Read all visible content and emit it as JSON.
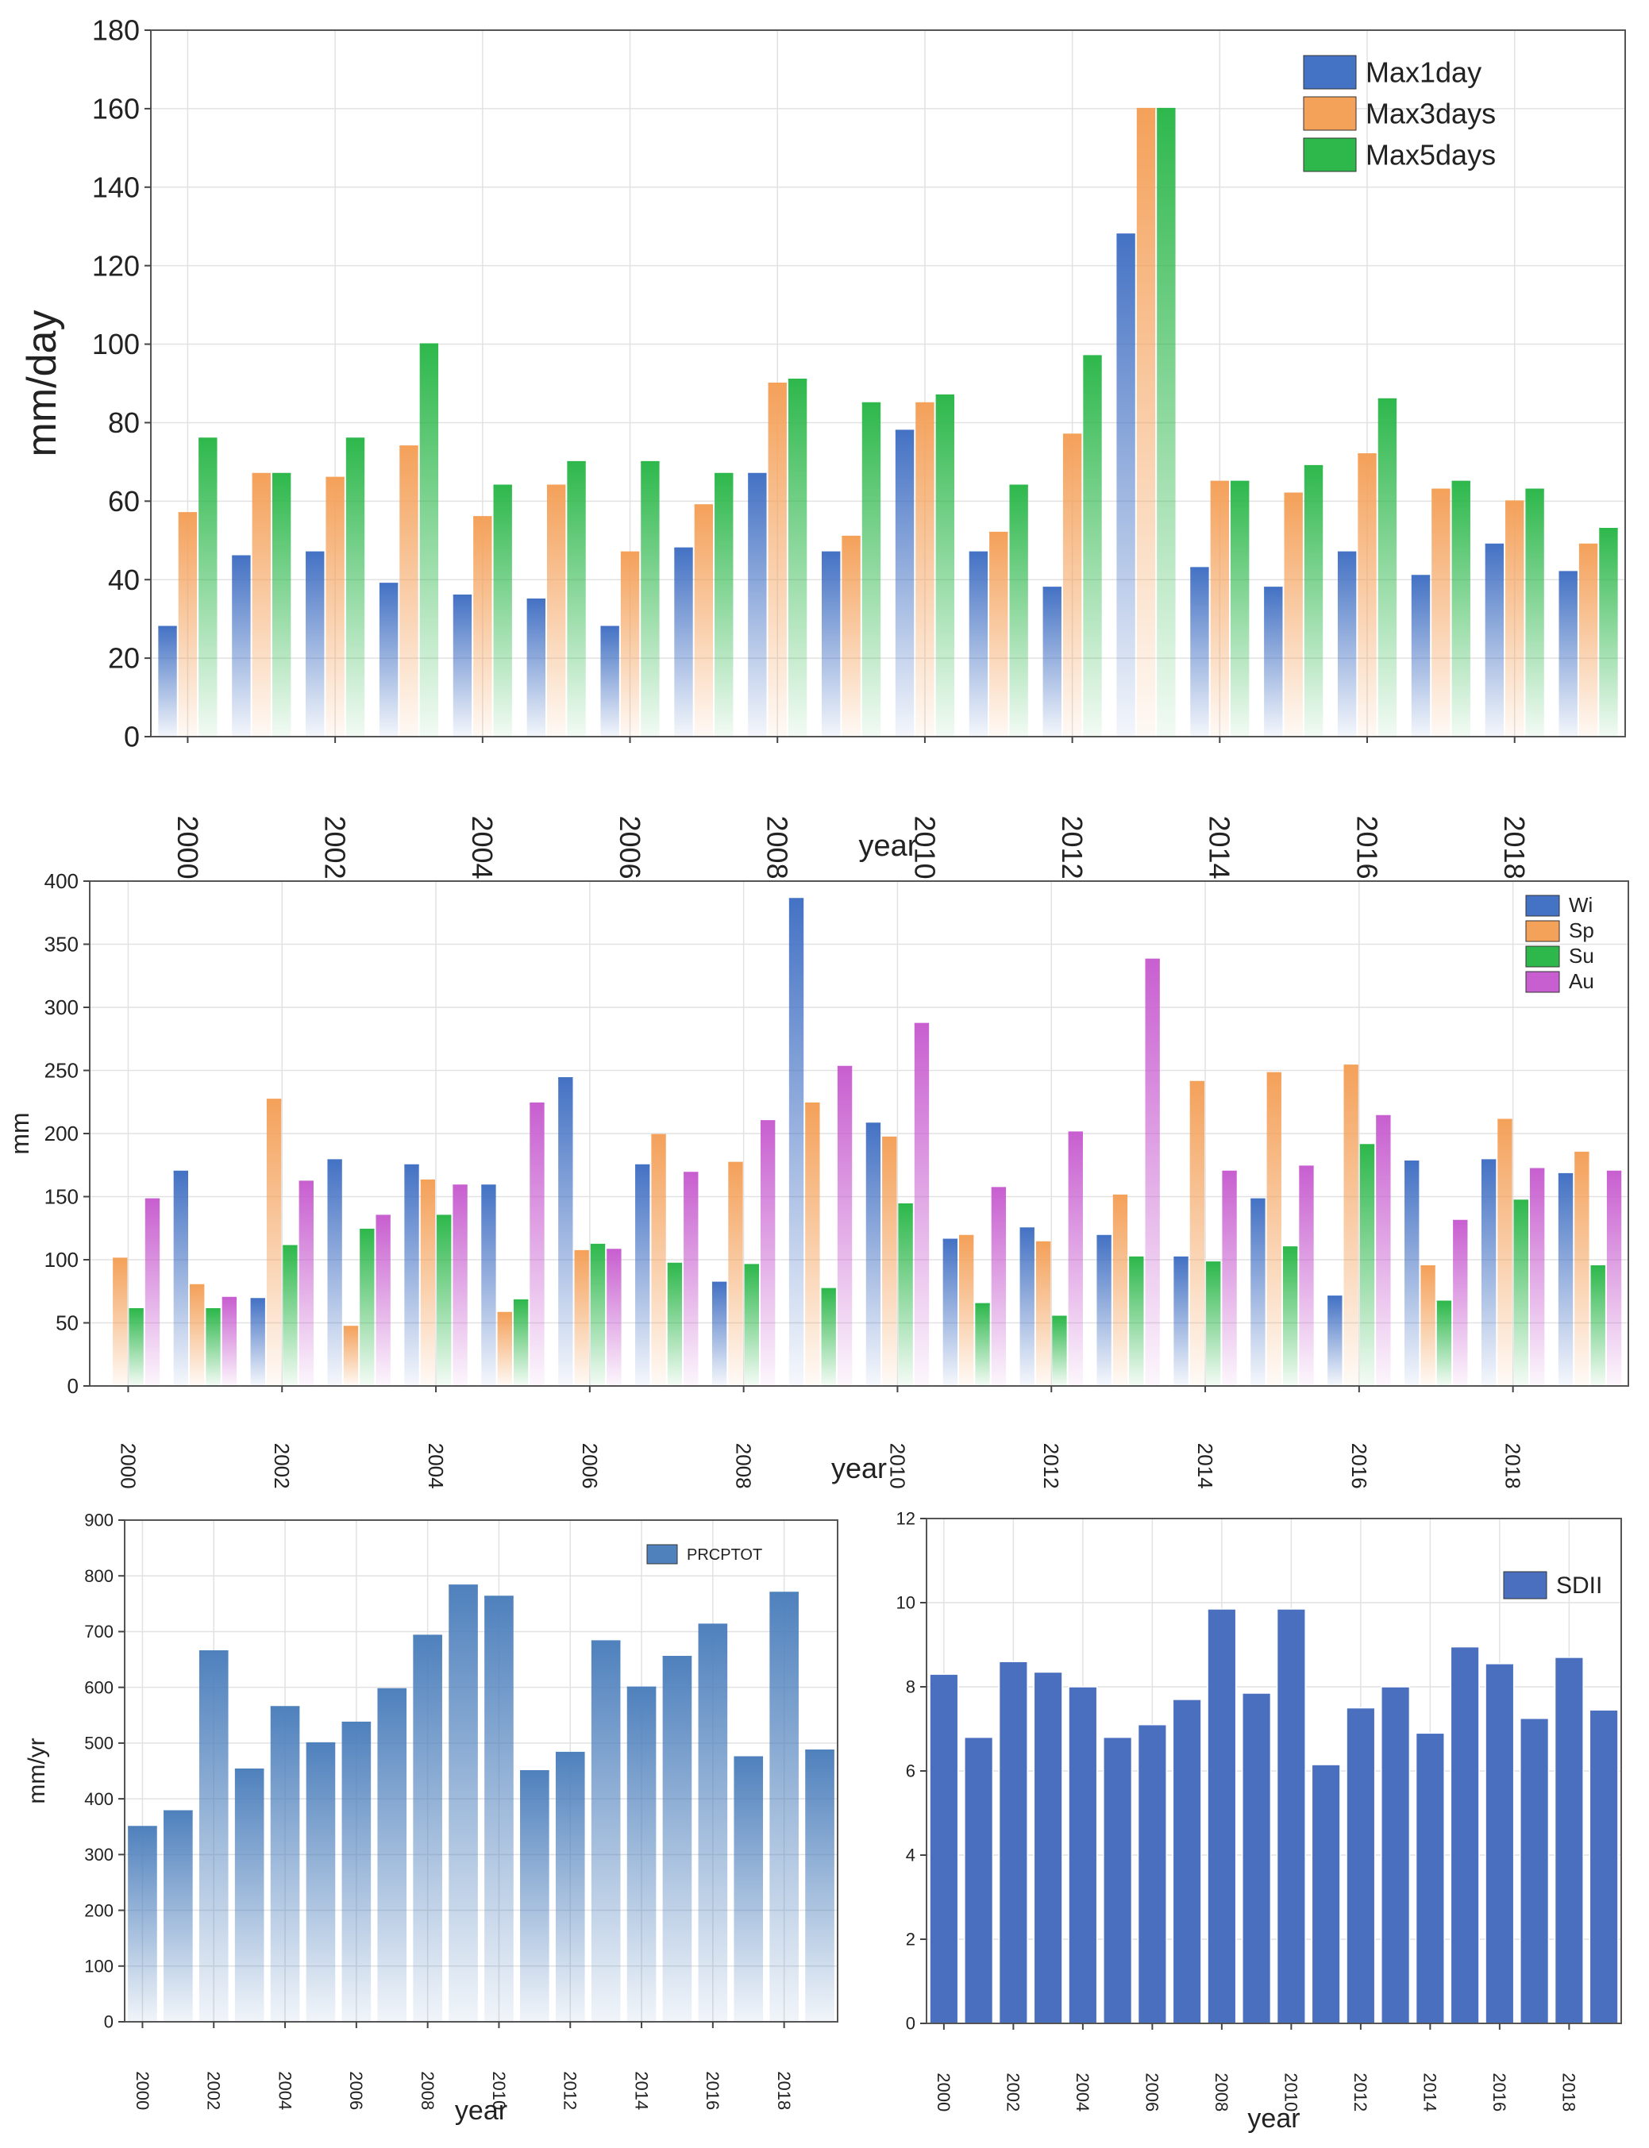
{
  "colors": {
    "Max1day": "#4472c4",
    "Max3days": "#f4a15a",
    "Max5days": "#2eb84c",
    "Wi": "#4472c4",
    "Sp": "#f4a15a",
    "Su": "#2eb84c",
    "Au": "#c85fd0",
    "PRCPTOT": "#4f81bd",
    "SDII": "#4a6fbe"
  },
  "chart_data": [
    {
      "id": "extremes",
      "type": "bar",
      "title": "",
      "xlabel": "year",
      "ylabel": "mm/day",
      "ylim": [
        0,
        180
      ],
      "yticks": [
        0,
        20,
        40,
        60,
        80,
        100,
        120,
        140,
        160,
        180
      ],
      "xtick_labels": [
        "2000",
        "2002",
        "2004",
        "2006",
        "2008",
        "2010",
        "2012",
        "2014",
        "2016",
        "2018"
      ],
      "legend_position": "top-right",
      "grid": true,
      "categories": [
        2000,
        2001,
        2002,
        2003,
        2004,
        2005,
        2006,
        2007,
        2008,
        2009,
        2010,
        2011,
        2012,
        2013,
        2014,
        2015,
        2016,
        2017,
        2018,
        2019
      ],
      "series": [
        {
          "name": "Max1day",
          "values": [
            28,
            46,
            47,
            39,
            36,
            35,
            28,
            48,
            67,
            47,
            78,
            47,
            38,
            128,
            43,
            38,
            47,
            41,
            49,
            42
          ]
        },
        {
          "name": "Max3days",
          "values": [
            57,
            67,
            66,
            74,
            56,
            64,
            47,
            59,
            90,
            51,
            85,
            52,
            77,
            160,
            65,
            62,
            72,
            63,
            60,
            49
          ]
        },
        {
          "name": "Max5days",
          "values": [
            76,
            67,
            76,
            100,
            64,
            70,
            70,
            67,
            91,
            85,
            87,
            64,
            97,
            160,
            65,
            69,
            86,
            65,
            63,
            53
          ]
        }
      ]
    },
    {
      "id": "seasonal",
      "type": "bar",
      "title": "",
      "xlabel": "year",
      "ylabel": "mm",
      "ylim": [
        0,
        400
      ],
      "yticks": [
        0,
        50,
        100,
        150,
        200,
        250,
        300,
        350,
        400
      ],
      "xtick_labels": [
        "2000",
        "2002",
        "2004",
        "2006",
        "2008",
        "2010",
        "2012",
        "2014",
        "2016",
        "2018"
      ],
      "legend_position": "top-right",
      "grid": true,
      "categories": [
        2000,
        2001,
        2002,
        2003,
        2004,
        2005,
        2006,
        2007,
        2008,
        2009,
        2010,
        2011,
        2012,
        2013,
        2014,
        2015,
        2016,
        2017,
        2018,
        2019
      ],
      "series": [
        {
          "name": "Wi",
          "values": [
            0,
            170,
            69,
            179,
            175,
            159,
            244,
            175,
            82,
            386,
            208,
            116,
            125,
            119,
            102,
            148,
            71,
            178,
            179,
            168
          ]
        },
        {
          "name": "Sp",
          "values": [
            101,
            80,
            227,
            47,
            163,
            58,
            107,
            199,
            177,
            224,
            197,
            119,
            114,
            151,
            241,
            248,
            254,
            95,
            211,
            185
          ]
        },
        {
          "name": "Su",
          "values": [
            61,
            61,
            111,
            124,
            135,
            68,
            112,
            97,
            96,
            77,
            144,
            65,
            55,
            102,
            98,
            110,
            191,
            67,
            147,
            95
          ]
        },
        {
          "name": "Au",
          "values": [
            148,
            70,
            162,
            135,
            159,
            224,
            108,
            169,
            210,
            253,
            287,
            157,
            201,
            338,
            170,
            174,
            214,
            131,
            172,
            170
          ]
        }
      ]
    },
    {
      "id": "prcptot",
      "type": "bar",
      "title": "",
      "xlabel": "year",
      "ylabel": "mm/yr",
      "ylim": [
        0,
        900
      ],
      "yticks": [
        0,
        100,
        200,
        300,
        400,
        500,
        600,
        700,
        800,
        900
      ],
      "xtick_labels": [
        "2000",
        "2002",
        "2004",
        "2006",
        "2008",
        "2010",
        "2012",
        "2014",
        "2016",
        "2018"
      ],
      "legend_position": "top-right",
      "grid": true,
      "categories": [
        2000,
        2001,
        2002,
        2003,
        2004,
        2005,
        2006,
        2007,
        2008,
        2009,
        2010,
        2011,
        2012,
        2013,
        2014,
        2015,
        2016,
        2017,
        2018,
        2019
      ],
      "series": [
        {
          "name": "PRCPTOT",
          "values": [
            350,
            378,
            665,
            453,
            565,
            500,
            537,
            597,
            693,
            783,
            763,
            450,
            483,
            683,
            600,
            655,
            713,
            475,
            770,
            487
          ]
        }
      ]
    },
    {
      "id": "sdii",
      "type": "bar",
      "title": "",
      "xlabel": "year",
      "ylabel": "",
      "ylim": [
        0,
        12
      ],
      "yticks": [
        0,
        2,
        4,
        6,
        8,
        10,
        12
      ],
      "xtick_labels": [
        "2000",
        "2002",
        "2004",
        "2006",
        "2008",
        "2010",
        "2012",
        "2014",
        "2016",
        "2018"
      ],
      "legend_position": "top-right",
      "grid": true,
      "categories": [
        2000,
        2001,
        2002,
        2003,
        2004,
        2005,
        2006,
        2007,
        2008,
        2009,
        2010,
        2011,
        2012,
        2013,
        2014,
        2015,
        2016,
        2017,
        2018,
        2019
      ],
      "series": [
        {
          "name": "SDII",
          "values": [
            8.3,
            6.8,
            8.6,
            8.35,
            8.0,
            6.8,
            7.1,
            7.7,
            9.85,
            7.85,
            9.85,
            6.15,
            7.5,
            8.0,
            6.9,
            8.95,
            8.55,
            7.25,
            8.7,
            7.45
          ]
        }
      ]
    }
  ]
}
